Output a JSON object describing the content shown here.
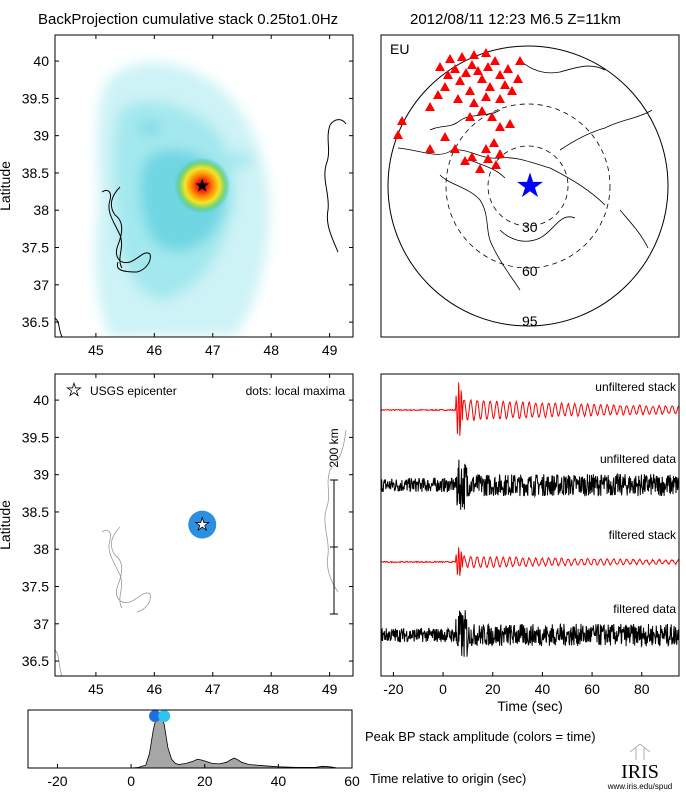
{
  "header": {
    "title": "BackProjection cumulative stack 0.25to1.0Hz",
    "event": "2012/08/11 12:23  M6.5  Z=11km"
  },
  "colors": {
    "stack_red": "#ff0000",
    "station_red": "#ff0000",
    "epicenter_blue": "#0000ff",
    "maxima_blue": "#2d8fe0",
    "peak_fill": "#a6a6a6"
  },
  "chart_data": [
    {
      "type": "heatmap",
      "name": "cumulative-stack-map",
      "xlabel": "",
      "ylabel": "Latitude",
      "xlim": [
        44.3,
        49.4
      ],
      "ylim": [
        36.3,
        40.35
      ],
      "xticks": [
        "45",
        "46",
        "47",
        "48",
        "49"
      ],
      "yticks": [
        "36.5",
        "37",
        "37.5",
        "38",
        "38.5",
        "39",
        "39.5",
        "40"
      ],
      "peak": {
        "lon": 46.82,
        "lat": 38.33
      }
    },
    {
      "type": "map",
      "name": "station-globe",
      "network": "EU",
      "ring_labels": [
        "30",
        "60",
        "95"
      ],
      "center": {
        "lon": 46.82,
        "lat": 38.33
      }
    },
    {
      "type": "scatter",
      "name": "local-maxima-map",
      "ylabel": "Latitude",
      "xlim": [
        44.3,
        49.4
      ],
      "ylim": [
        36.3,
        40.35
      ],
      "xticks": [
        "45",
        "46",
        "47",
        "48",
        "49"
      ],
      "yticks": [
        "36.5",
        "37",
        "37.5",
        "38",
        "38.5",
        "39",
        "39.5",
        "40"
      ],
      "legend_epicenter": "USGS epicenter",
      "legend_dots": "dots: local maxima",
      "epicenter": {
        "lon": 46.82,
        "lat": 38.33
      },
      "maxima": [
        {
          "lon": 46.82,
          "lat": 38.33
        }
      ],
      "scale_label": "200 km"
    },
    {
      "type": "line",
      "name": "trace-stack",
      "xlabel": "Time (sec)",
      "xlim": [
        -25,
        95
      ],
      "xticks": [
        "-20",
        "0",
        "20",
        "40",
        "60",
        "80"
      ],
      "series": [
        "unfiltered stack",
        "unfiltered data",
        "filtered stack",
        "filtered data"
      ]
    },
    {
      "type": "area",
      "name": "peak-amplitude",
      "xlim": [
        -28,
        60
      ],
      "xticks": [
        "-20",
        "0",
        "20",
        "40",
        "60"
      ],
      "x": [
        -28,
        0,
        2,
        4,
        5,
        6,
        7,
        8,
        9,
        10,
        11,
        12,
        13,
        15,
        17,
        18,
        19,
        20,
        22,
        24,
        26,
        27,
        28,
        29,
        30,
        32,
        34,
        36,
        38,
        40,
        45,
        50,
        52,
        54,
        56,
        60
      ],
      "values": [
        0,
        0,
        0.01,
        0.05,
        0.25,
        0.65,
        0.92,
        0.95,
        0.75,
        0.35,
        0.15,
        0.08,
        0.06,
        0.08,
        0.12,
        0.15,
        0.14,
        0.12,
        0.08,
        0.07,
        0.1,
        0.14,
        0.17,
        0.14,
        0.1,
        0.06,
        0.05,
        0.04,
        0.03,
        0.02,
        0.01,
        0.01,
        0.03,
        0.02,
        0.0,
        0.0
      ],
      "peak_markers": [
        6.5,
        9
      ],
      "label_amplitude": "Peak BP stack amplitude (colors = time)",
      "xlabel": "Time relative to origin (sec)"
    }
  ],
  "footer": {
    "logo_text": "IRIS",
    "url": "www.iris.edu/spud"
  }
}
